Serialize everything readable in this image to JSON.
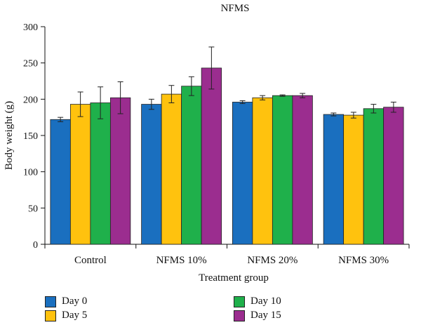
{
  "chart_data": {
    "type": "bar",
    "title": "NFMS",
    "xlabel": "Treatment group",
    "ylabel": "Body weight (g)",
    "ylim": [
      0,
      300
    ],
    "yticks": [
      0,
      50,
      100,
      150,
      200,
      250,
      300
    ],
    "categories": [
      "Control",
      "NFMS 10%",
      "NFMS 20%",
      "NFMS 30%"
    ],
    "series": [
      {
        "name": "Day 0",
        "color": "#1a6fbf",
        "values": [
          172,
          193,
          196,
          179
        ],
        "errors": [
          3,
          7,
          2,
          2
        ]
      },
      {
        "name": "Day 5",
        "color": "#ffc20e",
        "values": [
          193,
          207,
          202,
          178
        ],
        "errors": [
          17,
          12,
          3,
          4
        ]
      },
      {
        "name": "Day 10",
        "color": "#1fb04b",
        "values": [
          195,
          218,
          205,
          187
        ],
        "errors": [
          22,
          13,
          1,
          6
        ]
      },
      {
        "name": "Day 15",
        "color": "#9b2d8f",
        "values": [
          202,
          243,
          205,
          189
        ],
        "errors": [
          22,
          29,
          3,
          7
        ]
      }
    ],
    "grid": false,
    "legend_position": "bottom"
  }
}
